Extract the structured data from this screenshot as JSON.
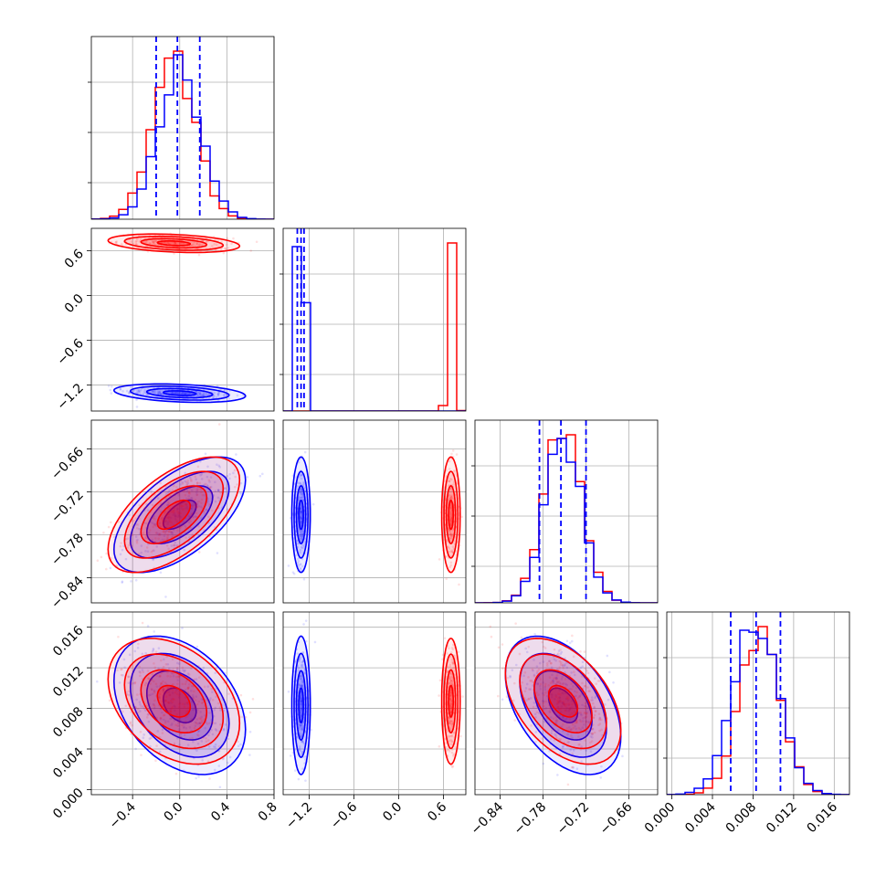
{
  "colors": {
    "red": "#ff0000",
    "blue": "#0000ff",
    "grid": "#b0b0b0"
  },
  "chart_data": {
    "type": "corner",
    "grid": true,
    "series": [
      {
        "name": "",
        "color": "#0000ff",
        "mean": [
          0.0,
          -1.31,
          -0.752,
          0.0083
        ],
        "sd": [
          0.18,
          0.04,
          0.026,
          0.0022
        ],
        "quantiles": [
          [
            -0.2,
            -0.02,
            0.17
          ],
          [
            -1.36,
            -1.31,
            -1.27
          ],
          [
            -0.785,
            -0.755,
            -0.72
          ],
          [
            0.0058,
            0.0083,
            0.0107
          ]
        ]
      },
      {
        "name": "",
        "color": "#ff0000",
        "mean": [
          -0.05,
          0.7,
          -0.752,
          0.0087
        ],
        "sd": [
          0.18,
          0.04,
          0.026,
          0.002
        ]
      }
    ],
    "correlations": {
      "blue": {
        "0-1": -0.3,
        "0-2": 0.6,
        "0-3": -0.35,
        "1-2": 0.0,
        "1-3": 0.0,
        "2-3": -0.45
      },
      "red": {
        "0-1": -0.3,
        "0-2": 0.6,
        "0-3": -0.35,
        "1-2": 0.0,
        "1-3": 0.0,
        "2-3": -0.45
      }
    },
    "params": [
      {
        "range": [
          -0.75,
          0.8
        ],
        "ticks": [
          -0.4,
          0.0,
          0.4,
          0.8
        ],
        "tick_labels": [
          "−0.4",
          "0.0",
          "0.4",
          "0.8"
        ]
      },
      {
        "range": [
          -1.55,
          0.9
        ],
        "ticks": [
          -1.2,
          -0.6,
          0.0,
          0.6
        ],
        "tick_labels": [
          "−1.2",
          "−0.6",
          "0.0",
          "0.6"
        ]
      },
      {
        "range": [
          -0.875,
          -0.62
        ],
        "ticks": [
          -0.84,
          -0.78,
          -0.72,
          -0.66
        ],
        "tick_labels": [
          "−0.84",
          "−0.78",
          "−0.72",
          "−0.66"
        ]
      },
      {
        "range": [
          -0.0005,
          0.0175
        ],
        "ticks": [
          0.0,
          0.004,
          0.008,
          0.012,
          0.016
        ],
        "tick_labels": [
          "0.000",
          "0.004",
          "0.008",
          "0.012",
          "0.016"
        ]
      }
    ]
  }
}
